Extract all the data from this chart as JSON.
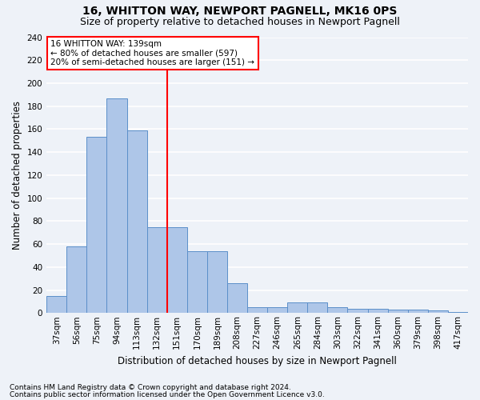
{
  "title1": "16, WHITTON WAY, NEWPORT PAGNELL, MK16 0PS",
  "title2": "Size of property relative to detached houses in Newport Pagnell",
  "xlabel": "Distribution of detached houses by size in Newport Pagnell",
  "ylabel": "Number of detached properties",
  "bar_values": [
    15,
    58,
    153,
    187,
    159,
    75,
    75,
    54,
    54,
    26,
    5,
    5,
    9,
    9,
    5,
    4,
    4,
    3,
    3,
    2,
    1
  ],
  "bar_labels": [
    "37sqm",
    "56sqm",
    "75sqm",
    "94sqm",
    "113sqm",
    "132sqm",
    "151sqm",
    "170sqm",
    "189sqm",
    "208sqm",
    "227sqm",
    "246sqm",
    "265sqm",
    "284sqm",
    "303sqm",
    "322sqm",
    "341sqm",
    "360sqm",
    "379sqm",
    "398sqm",
    "417sqm"
  ],
  "bar_color": "#aec6e8",
  "bar_edge_color": "#5b8fc9",
  "vline_x": 5.5,
  "vline_color": "red",
  "annotation_line1": "16 WHITTON WAY: 139sqm",
  "annotation_line2": "← 80% of detached houses are smaller (597)",
  "annotation_line3": "20% of semi-detached houses are larger (151) →",
  "ylim_min": 0,
  "ylim_max": 240,
  "yticks": [
    0,
    20,
    40,
    60,
    80,
    100,
    120,
    140,
    160,
    180,
    200,
    220,
    240
  ],
  "footer1": "Contains HM Land Registry data © Crown copyright and database right 2024.",
  "footer2": "Contains public sector information licensed under the Open Government Licence v3.0.",
  "bg_color": "#eef2f8",
  "grid_color": "#ffffff",
  "title1_fontsize": 10,
  "title2_fontsize": 9,
  "xlabel_fontsize": 8.5,
  "ylabel_fontsize": 8.5,
  "tick_fontsize": 7.5,
  "annot_fontsize": 7.5,
  "footer_fontsize": 6.5
}
